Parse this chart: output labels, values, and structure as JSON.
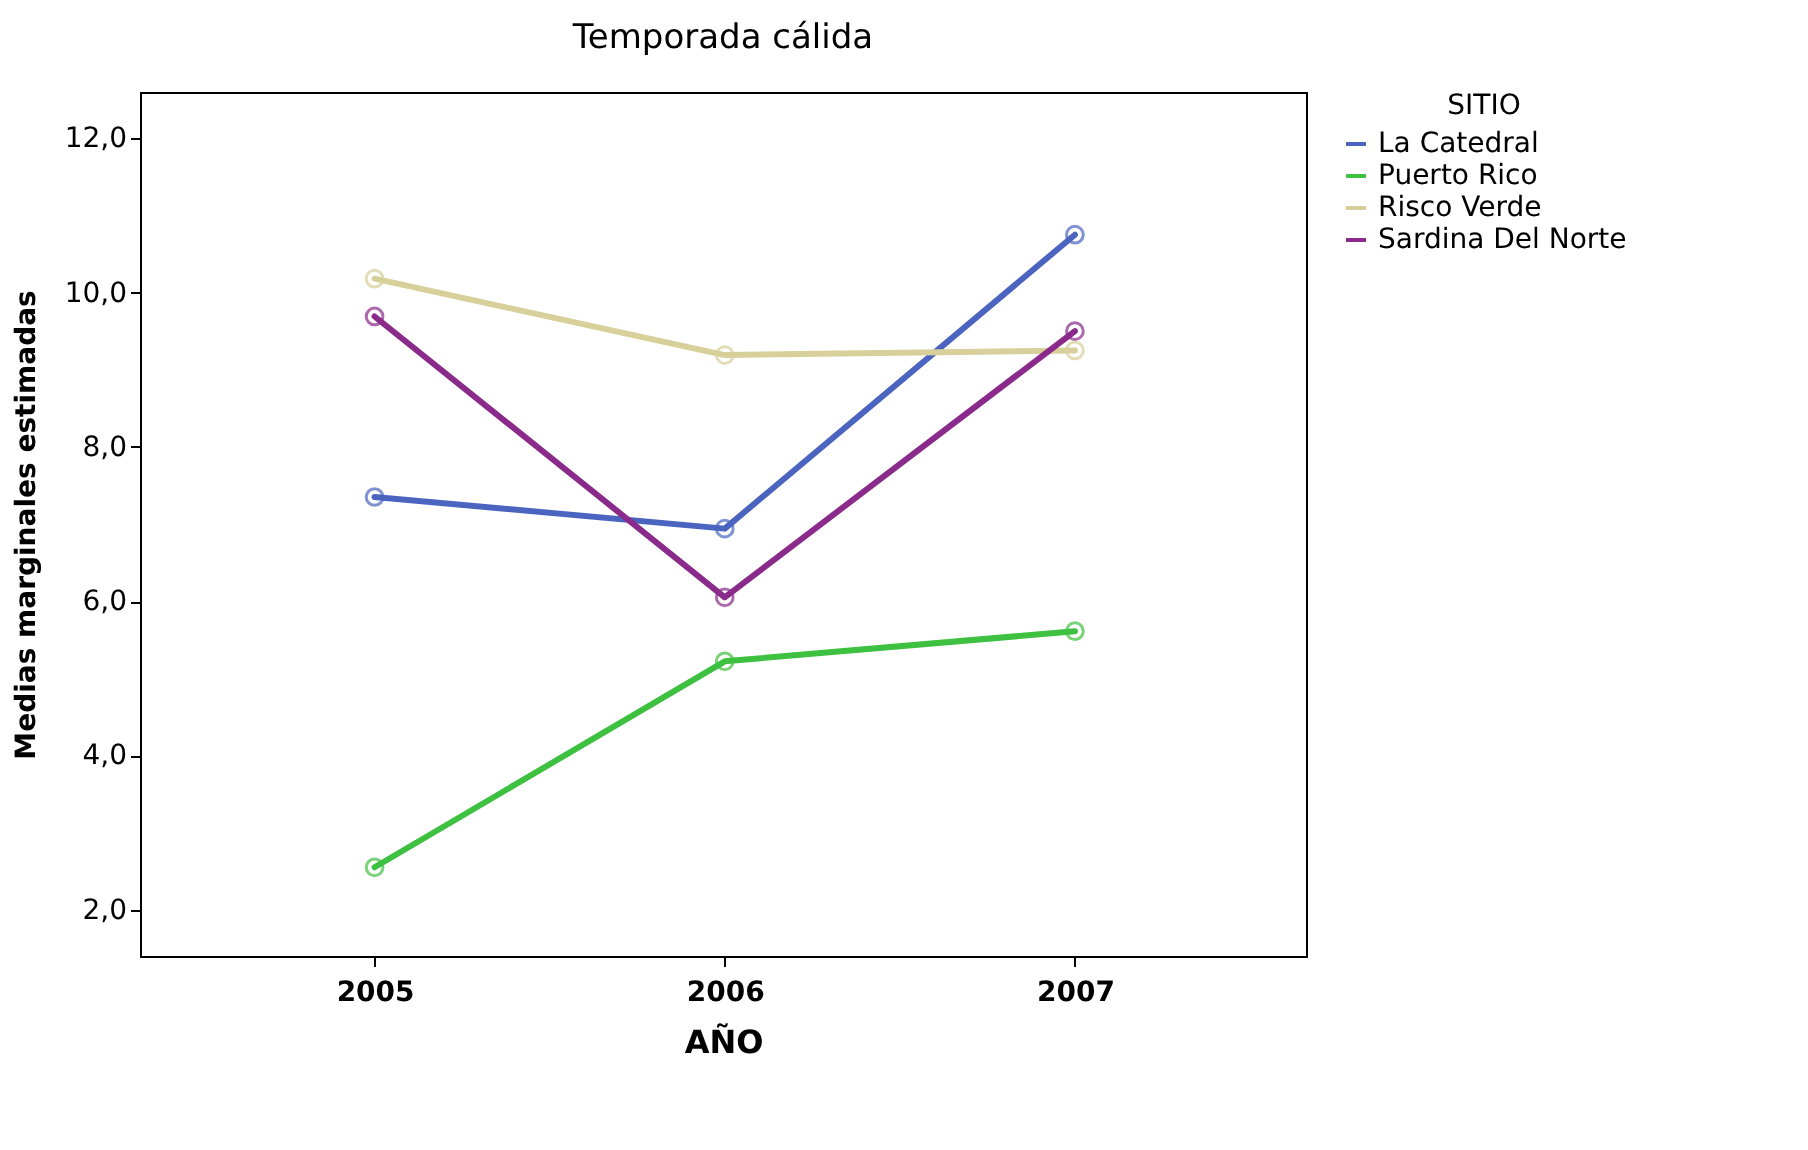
{
  "chart_data": {
    "type": "line",
    "title": "Temporada cálida",
    "xlabel": "AÑO",
    "ylabel": "Medias marginales estimadas",
    "legend_title": "SITIO",
    "legend": "top right",
    "marker": "circle",
    "line_style": "solid",
    "grid": false,
    "x": [
      2005,
      2006,
      2007
    ],
    "xlim": [
      2004.33,
      2007.66
    ],
    "xticks": [
      2005,
      2006,
      2007
    ],
    "ylim": [
      1.4,
      12.6
    ],
    "yticks": [
      {
        "value": 2,
        "label": "2,0"
      },
      {
        "value": 4,
        "label": "4,0"
      },
      {
        "value": 6,
        "label": "6,0"
      },
      {
        "value": 8,
        "label": "8,0"
      },
      {
        "value": 10,
        "label": "10,0"
      },
      {
        "value": 12,
        "label": "12,0"
      }
    ],
    "series": [
      {
        "name": "La Catedral",
        "color": "#4a64c0",
        "values": [
          7.35,
          6.94,
          10.75
        ]
      },
      {
        "name": "Puerto Rico",
        "color": "#3ec040",
        "values": [
          2.55,
          5.22,
          5.61
        ]
      },
      {
        "name": "Risco Verde",
        "color": "#d8d09a",
        "values": [
          10.18,
          9.19,
          9.25
        ]
      },
      {
        "name": "Sardina Del Norte",
        "color": "#8a2a8a",
        "values": [
          9.69,
          6.05,
          9.5
        ]
      }
    ]
  }
}
